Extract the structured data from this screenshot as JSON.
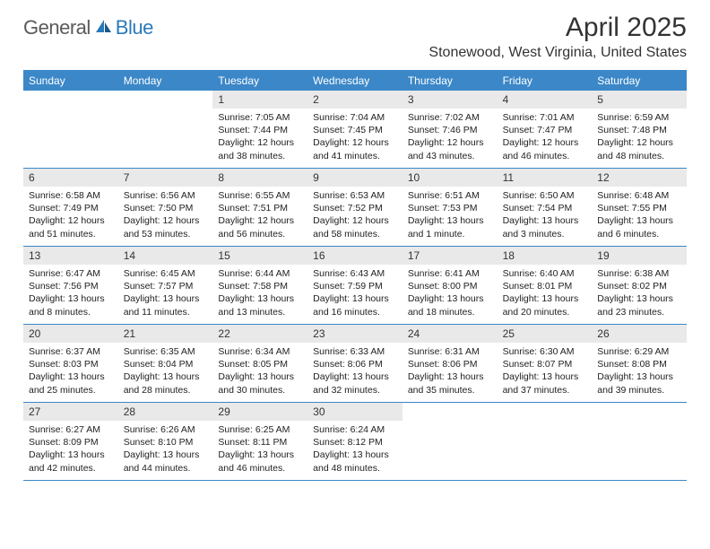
{
  "logo": {
    "general": "General",
    "blue": "Blue"
  },
  "header": {
    "title": "April 2025",
    "location": "Stonewood, West Virginia, United States"
  },
  "colors": {
    "brand_blue": "#3b87c8",
    "header_bg": "#3b87c8",
    "daynum_bg": "#e9e9e9",
    "text": "#333333"
  },
  "weekdays": [
    "Sunday",
    "Monday",
    "Tuesday",
    "Wednesday",
    "Thursday",
    "Friday",
    "Saturday"
  ],
  "weeks": [
    [
      {
        "day": "",
        "sunrise": "",
        "sunset": "",
        "daylight": ""
      },
      {
        "day": "",
        "sunrise": "",
        "sunset": "",
        "daylight": ""
      },
      {
        "day": "1",
        "sunrise": "Sunrise: 7:05 AM",
        "sunset": "Sunset: 7:44 PM",
        "daylight": "Daylight: 12 hours and 38 minutes."
      },
      {
        "day": "2",
        "sunrise": "Sunrise: 7:04 AM",
        "sunset": "Sunset: 7:45 PM",
        "daylight": "Daylight: 12 hours and 41 minutes."
      },
      {
        "day": "3",
        "sunrise": "Sunrise: 7:02 AM",
        "sunset": "Sunset: 7:46 PM",
        "daylight": "Daylight: 12 hours and 43 minutes."
      },
      {
        "day": "4",
        "sunrise": "Sunrise: 7:01 AM",
        "sunset": "Sunset: 7:47 PM",
        "daylight": "Daylight: 12 hours and 46 minutes."
      },
      {
        "day": "5",
        "sunrise": "Sunrise: 6:59 AM",
        "sunset": "Sunset: 7:48 PM",
        "daylight": "Daylight: 12 hours and 48 minutes."
      }
    ],
    [
      {
        "day": "6",
        "sunrise": "Sunrise: 6:58 AM",
        "sunset": "Sunset: 7:49 PM",
        "daylight": "Daylight: 12 hours and 51 minutes."
      },
      {
        "day": "7",
        "sunrise": "Sunrise: 6:56 AM",
        "sunset": "Sunset: 7:50 PM",
        "daylight": "Daylight: 12 hours and 53 minutes."
      },
      {
        "day": "8",
        "sunrise": "Sunrise: 6:55 AM",
        "sunset": "Sunset: 7:51 PM",
        "daylight": "Daylight: 12 hours and 56 minutes."
      },
      {
        "day": "9",
        "sunrise": "Sunrise: 6:53 AM",
        "sunset": "Sunset: 7:52 PM",
        "daylight": "Daylight: 12 hours and 58 minutes."
      },
      {
        "day": "10",
        "sunrise": "Sunrise: 6:51 AM",
        "sunset": "Sunset: 7:53 PM",
        "daylight": "Daylight: 13 hours and 1 minute."
      },
      {
        "day": "11",
        "sunrise": "Sunrise: 6:50 AM",
        "sunset": "Sunset: 7:54 PM",
        "daylight": "Daylight: 13 hours and 3 minutes."
      },
      {
        "day": "12",
        "sunrise": "Sunrise: 6:48 AM",
        "sunset": "Sunset: 7:55 PM",
        "daylight": "Daylight: 13 hours and 6 minutes."
      }
    ],
    [
      {
        "day": "13",
        "sunrise": "Sunrise: 6:47 AM",
        "sunset": "Sunset: 7:56 PM",
        "daylight": "Daylight: 13 hours and 8 minutes."
      },
      {
        "day": "14",
        "sunrise": "Sunrise: 6:45 AM",
        "sunset": "Sunset: 7:57 PM",
        "daylight": "Daylight: 13 hours and 11 minutes."
      },
      {
        "day": "15",
        "sunrise": "Sunrise: 6:44 AM",
        "sunset": "Sunset: 7:58 PM",
        "daylight": "Daylight: 13 hours and 13 minutes."
      },
      {
        "day": "16",
        "sunrise": "Sunrise: 6:43 AM",
        "sunset": "Sunset: 7:59 PM",
        "daylight": "Daylight: 13 hours and 16 minutes."
      },
      {
        "day": "17",
        "sunrise": "Sunrise: 6:41 AM",
        "sunset": "Sunset: 8:00 PM",
        "daylight": "Daylight: 13 hours and 18 minutes."
      },
      {
        "day": "18",
        "sunrise": "Sunrise: 6:40 AM",
        "sunset": "Sunset: 8:01 PM",
        "daylight": "Daylight: 13 hours and 20 minutes."
      },
      {
        "day": "19",
        "sunrise": "Sunrise: 6:38 AM",
        "sunset": "Sunset: 8:02 PM",
        "daylight": "Daylight: 13 hours and 23 minutes."
      }
    ],
    [
      {
        "day": "20",
        "sunrise": "Sunrise: 6:37 AM",
        "sunset": "Sunset: 8:03 PM",
        "daylight": "Daylight: 13 hours and 25 minutes."
      },
      {
        "day": "21",
        "sunrise": "Sunrise: 6:35 AM",
        "sunset": "Sunset: 8:04 PM",
        "daylight": "Daylight: 13 hours and 28 minutes."
      },
      {
        "day": "22",
        "sunrise": "Sunrise: 6:34 AM",
        "sunset": "Sunset: 8:05 PM",
        "daylight": "Daylight: 13 hours and 30 minutes."
      },
      {
        "day": "23",
        "sunrise": "Sunrise: 6:33 AM",
        "sunset": "Sunset: 8:06 PM",
        "daylight": "Daylight: 13 hours and 32 minutes."
      },
      {
        "day": "24",
        "sunrise": "Sunrise: 6:31 AM",
        "sunset": "Sunset: 8:06 PM",
        "daylight": "Daylight: 13 hours and 35 minutes."
      },
      {
        "day": "25",
        "sunrise": "Sunrise: 6:30 AM",
        "sunset": "Sunset: 8:07 PM",
        "daylight": "Daylight: 13 hours and 37 minutes."
      },
      {
        "day": "26",
        "sunrise": "Sunrise: 6:29 AM",
        "sunset": "Sunset: 8:08 PM",
        "daylight": "Daylight: 13 hours and 39 minutes."
      }
    ],
    [
      {
        "day": "27",
        "sunrise": "Sunrise: 6:27 AM",
        "sunset": "Sunset: 8:09 PM",
        "daylight": "Daylight: 13 hours and 42 minutes."
      },
      {
        "day": "28",
        "sunrise": "Sunrise: 6:26 AM",
        "sunset": "Sunset: 8:10 PM",
        "daylight": "Daylight: 13 hours and 44 minutes."
      },
      {
        "day": "29",
        "sunrise": "Sunrise: 6:25 AM",
        "sunset": "Sunset: 8:11 PM",
        "daylight": "Daylight: 13 hours and 46 minutes."
      },
      {
        "day": "30",
        "sunrise": "Sunrise: 6:24 AM",
        "sunset": "Sunset: 8:12 PM",
        "daylight": "Daylight: 13 hours and 48 minutes."
      },
      {
        "day": "",
        "sunrise": "",
        "sunset": "",
        "daylight": ""
      },
      {
        "day": "",
        "sunrise": "",
        "sunset": "",
        "daylight": ""
      },
      {
        "day": "",
        "sunrise": "",
        "sunset": "",
        "daylight": ""
      }
    ]
  ]
}
